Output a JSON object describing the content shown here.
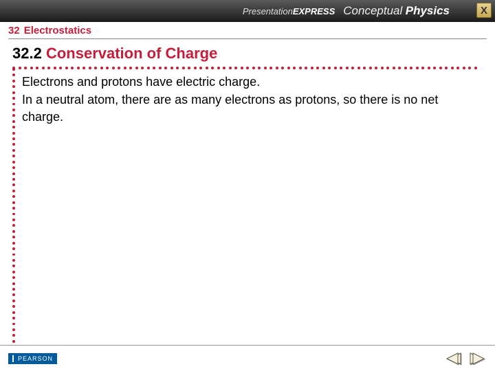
{
  "banner": {
    "presentation": "Presentation",
    "express": "EXPRESS",
    "conceptual": "Conceptual",
    "physics": "Physics",
    "close_label": "X"
  },
  "chapter": {
    "number": "32",
    "title": "Electrostatics"
  },
  "section": {
    "number": "32.2",
    "topic": "Conservation of Charge"
  },
  "body": {
    "p1": "Electrons and protons have electric charge.",
    "p2": "In a neutral atom, there are as many electrons as protons, so there is no net charge."
  },
  "footer": {
    "publisher": "PEARSON"
  },
  "colors": {
    "accent": "#c41e3a",
    "banner_bg": "#3a3a3a",
    "pearson": "#005a9c",
    "text": "#000000"
  },
  "dots": {
    "row_count": 80,
    "col_count": 48
  }
}
